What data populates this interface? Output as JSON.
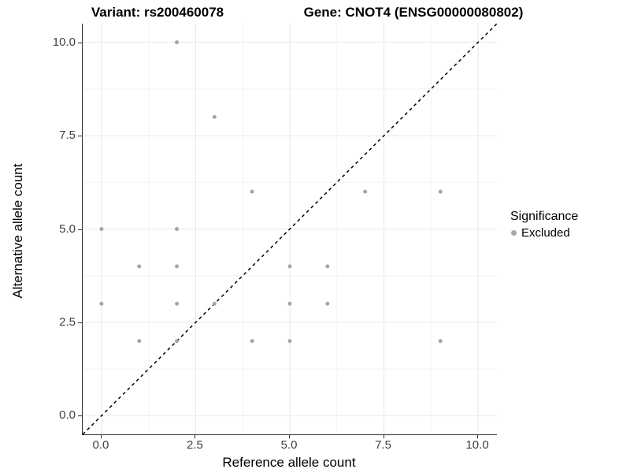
{
  "titles": {
    "left": "Variant: rs200460078",
    "right": "Gene: CNOT4 (ENSG00000080802)"
  },
  "chart_data": {
    "type": "scatter",
    "title_left": "Variant: rs200460078",
    "title_right": "Gene: CNOT4 (ENSG00000080802)",
    "xlabel": "Reference allele count",
    "ylabel": "Alternative allele count",
    "xlim": [
      -0.5,
      10.5
    ],
    "ylim": [
      -0.5,
      10.5
    ],
    "x_ticks": [
      0,
      2.5,
      5,
      7.5,
      10
    ],
    "y_ticks": [
      0,
      2.5,
      5,
      7.5,
      10
    ],
    "x_tick_labels": [
      "0.0",
      "2.5",
      "5.0",
      "7.5",
      "10.0"
    ],
    "y_tick_labels": [
      "0.0",
      "2.5",
      "5.0",
      "7.5",
      "10.0"
    ],
    "minor_ticks": [
      1.25,
      3.75,
      6.25,
      8.75
    ],
    "grid": true,
    "reference_line": {
      "type": "identity y=x",
      "style": "dashed",
      "color": "#000000"
    },
    "series": [
      {
        "name": "Excluded",
        "color": "#a6a6a6",
        "points": [
          [
            0,
            3
          ],
          [
            0,
            5
          ],
          [
            1,
            2
          ],
          [
            1,
            4
          ],
          [
            2,
            2
          ],
          [
            2,
            3
          ],
          [
            2,
            4
          ],
          [
            2,
            5
          ],
          [
            2,
            10
          ],
          [
            3,
            3
          ],
          [
            3,
            8
          ],
          [
            4,
            2
          ],
          [
            4,
            6
          ],
          [
            5,
            2
          ],
          [
            5,
            3
          ],
          [
            5,
            4
          ],
          [
            6,
            3
          ],
          [
            6,
            4
          ],
          [
            7,
            6
          ],
          [
            9,
            2
          ],
          [
            9,
            6
          ]
        ]
      }
    ],
    "legend": {
      "title": "Significance",
      "position": "right",
      "entries": [
        {
          "label": "Excluded",
          "color": "#a6a6a6"
        }
      ]
    }
  },
  "colors": {
    "background": "#ffffff",
    "grid_major": "#e8e8e8",
    "grid_minor": "#f3f3f3",
    "axis_line": "#2b2b2b",
    "point": "#a6a6a6",
    "reference_line": "#000000",
    "tick_text": "#404040"
  }
}
